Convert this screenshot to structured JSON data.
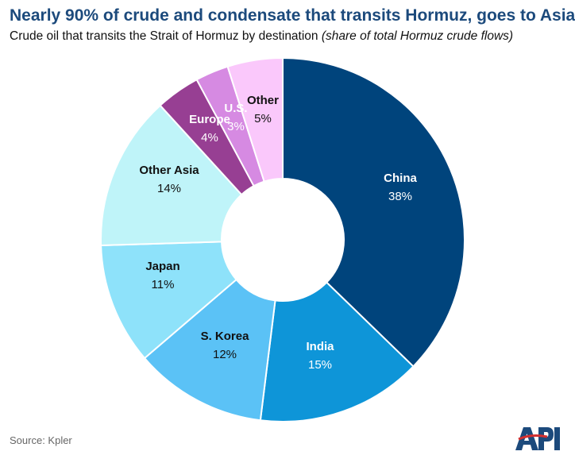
{
  "title": "Nearly 90% of crude and condensate that transits Hormuz, goes to Asia",
  "subtitle": "Crude oil that transits the Strait of Hormuz by destination",
  "subtitle_note": "(share of total Hormuz crude flows)",
  "source": "Source: Kpler",
  "logo_text": "API",
  "chart_data": {
    "type": "pie",
    "variant": "donut",
    "title": "Nearly 90% of crude and condensate that transits Hormuz, goes to Asia",
    "slices": [
      {
        "name": "China",
        "label": "38%",
        "value": 38,
        "color": "#00447c",
        "text_color": "#ffffff"
      },
      {
        "name": "India",
        "label": "15%",
        "value": 15,
        "color": "#0e95d8",
        "text_color": "#ffffff"
      },
      {
        "name": "S. Korea",
        "label": "12%",
        "value": 12,
        "color": "#5bc2f6",
        "text_color": "#111111"
      },
      {
        "name": "Japan",
        "label": "11%",
        "value": 11,
        "color": "#8ee2fa",
        "text_color": "#111111"
      },
      {
        "name": "Other Asia",
        "label": "14%",
        "value": 14,
        "color": "#bff4f9",
        "text_color": "#111111"
      },
      {
        "name": "Europe",
        "label": "4%",
        "value": 4,
        "color": "#973f93",
        "text_color": "#ffffff"
      },
      {
        "name": "U.S.",
        "label": "3%",
        "value": 3,
        "color": "#d68ae2",
        "text_color": "#ffffff"
      },
      {
        "name": "Other",
        "label": "5%",
        "value": 5,
        "color": "#fac8fb",
        "text_color": "#111111"
      }
    ]
  }
}
